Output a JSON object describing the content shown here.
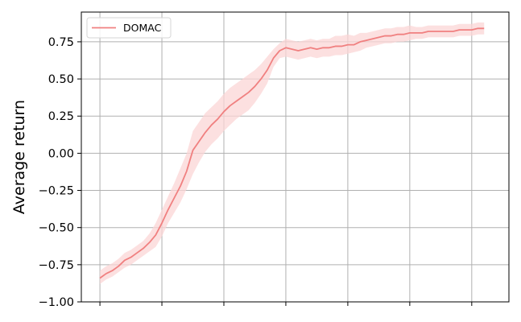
{
  "chart_data": {
    "type": "line",
    "title": "",
    "xlabel": "",
    "ylabel": "Average return",
    "ylim": [
      -1.0,
      0.95
    ],
    "xlim": [
      -0.3,
      6.6
    ],
    "grid": true,
    "legend_position": "top-left",
    "x_ticks": [
      0,
      1,
      2,
      3,
      4,
      5,
      6
    ],
    "x_tick_labels": [
      "",
      "",
      "",
      "",
      "",
      "",
      ""
    ],
    "y_ticks": [
      -1.0,
      -0.75,
      -0.5,
      -0.25,
      0.0,
      0.25,
      0.5,
      0.75
    ],
    "y_tick_labels": [
      "−1.00",
      "−0.75",
      "−0.50",
      "−0.25",
      "0.00",
      "0.25",
      "0.50",
      "0.75"
    ],
    "series": [
      {
        "name": "DOMAC",
        "color": "#f08080",
        "band_color": "#fbd5d5",
        "x": [
          0.0,
          0.1,
          0.2,
          0.3,
          0.4,
          0.5,
          0.6,
          0.7,
          0.8,
          0.9,
          1.0,
          1.1,
          1.2,
          1.3,
          1.4,
          1.5,
          1.6,
          1.7,
          1.8,
          1.9,
          2.0,
          2.1,
          2.2,
          2.3,
          2.4,
          2.5,
          2.6,
          2.7,
          2.8,
          2.9,
          3.0,
          3.1,
          3.2,
          3.3,
          3.4,
          3.5,
          3.6,
          3.7,
          3.8,
          3.9,
          4.0,
          4.1,
          4.2,
          4.3,
          4.4,
          4.5,
          4.6,
          4.7,
          4.8,
          4.9,
          5.0,
          5.1,
          5.2,
          5.3,
          5.4,
          5.5,
          5.6,
          5.7,
          5.8,
          5.9,
          6.0,
          6.1,
          6.2
        ],
        "mean": [
          -0.84,
          -0.81,
          -0.79,
          -0.76,
          -0.72,
          -0.7,
          -0.67,
          -0.64,
          -0.6,
          -0.55,
          -0.47,
          -0.38,
          -0.3,
          -0.22,
          -0.12,
          0.02,
          0.08,
          0.14,
          0.19,
          0.23,
          0.28,
          0.32,
          0.35,
          0.38,
          0.41,
          0.45,
          0.5,
          0.56,
          0.64,
          0.69,
          0.71,
          0.7,
          0.69,
          0.7,
          0.71,
          0.7,
          0.71,
          0.71,
          0.72,
          0.72,
          0.73,
          0.73,
          0.75,
          0.76,
          0.77,
          0.78,
          0.79,
          0.79,
          0.8,
          0.8,
          0.81,
          0.81,
          0.81,
          0.82,
          0.82,
          0.82,
          0.82,
          0.82,
          0.83,
          0.83,
          0.83,
          0.84,
          0.84
        ],
        "lower": [
          -0.88,
          -0.85,
          -0.83,
          -0.8,
          -0.77,
          -0.75,
          -0.72,
          -0.69,
          -0.66,
          -0.63,
          -0.56,
          -0.47,
          -0.4,
          -0.33,
          -0.24,
          -0.14,
          -0.06,
          0.01,
          0.06,
          0.1,
          0.15,
          0.19,
          0.23,
          0.26,
          0.29,
          0.34,
          0.4,
          0.47,
          0.58,
          0.64,
          0.65,
          0.64,
          0.63,
          0.64,
          0.65,
          0.64,
          0.65,
          0.65,
          0.66,
          0.66,
          0.67,
          0.68,
          0.69,
          0.71,
          0.72,
          0.73,
          0.74,
          0.74,
          0.75,
          0.75,
          0.76,
          0.77,
          0.77,
          0.78,
          0.78,
          0.78,
          0.78,
          0.78,
          0.79,
          0.79,
          0.79,
          0.8,
          0.8
        ],
        "upper": [
          -0.79,
          -0.76,
          -0.74,
          -0.71,
          -0.67,
          -0.65,
          -0.62,
          -0.59,
          -0.54,
          -0.47,
          -0.38,
          -0.29,
          -0.2,
          -0.1,
          0.0,
          0.15,
          0.21,
          0.27,
          0.31,
          0.35,
          0.4,
          0.44,
          0.47,
          0.5,
          0.53,
          0.56,
          0.6,
          0.65,
          0.7,
          0.74,
          0.77,
          0.76,
          0.75,
          0.76,
          0.77,
          0.76,
          0.77,
          0.77,
          0.79,
          0.79,
          0.8,
          0.79,
          0.81,
          0.81,
          0.82,
          0.83,
          0.84,
          0.84,
          0.85,
          0.85,
          0.86,
          0.85,
          0.85,
          0.86,
          0.86,
          0.86,
          0.86,
          0.86,
          0.87,
          0.87,
          0.87,
          0.88,
          0.88
        ]
      }
    ]
  }
}
